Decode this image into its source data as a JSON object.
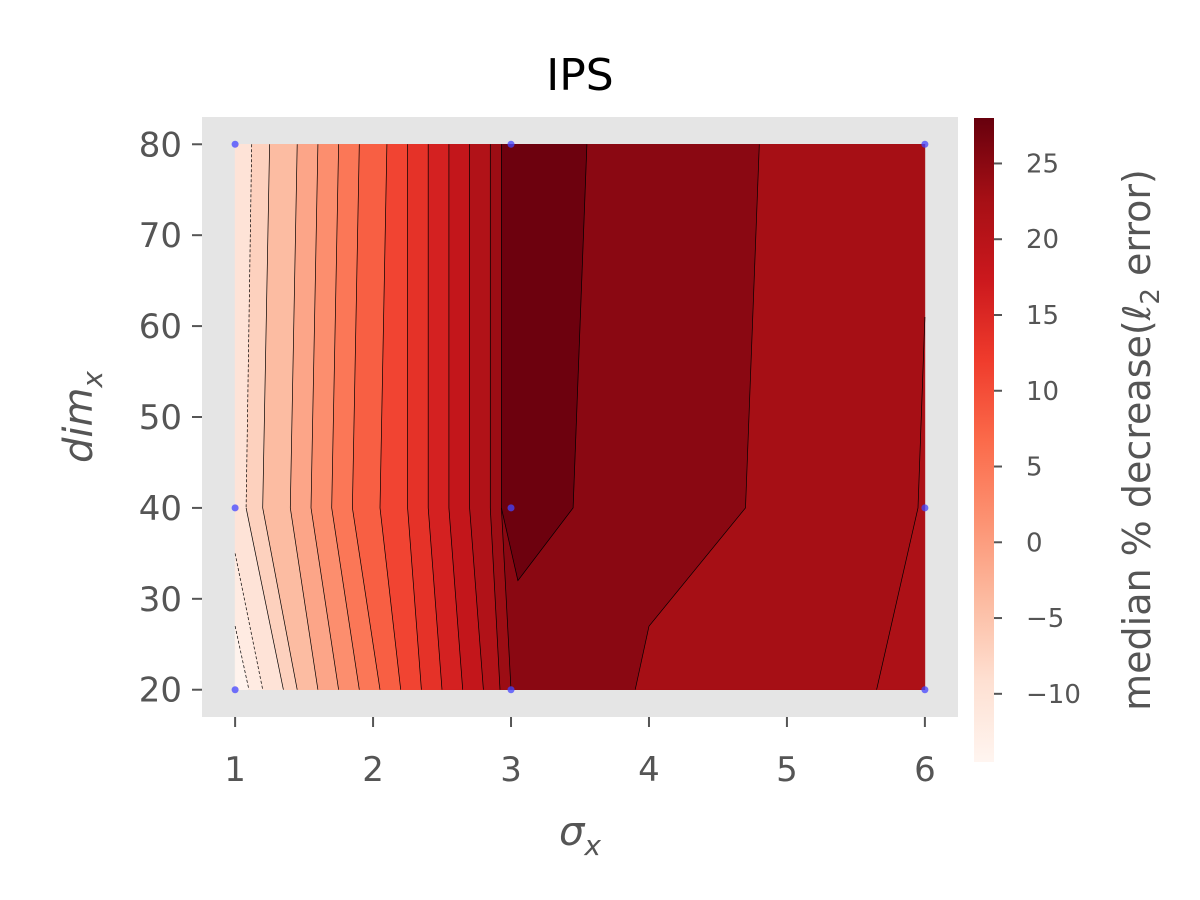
{
  "chart_data": {
    "type": "contour",
    "title": "IPS",
    "xlabel": "σ",
    "xlabel_sub": "x",
    "ylabel": "dim",
    "ylabel_sub": "x",
    "colorbar_label": "median % decrease(ℓ",
    "colorbar_label_sub": "2",
    "colorbar_label_tail": " error)",
    "colormap": "Reds",
    "x_ticks": [
      "1",
      "2",
      "3",
      "4",
      "5",
      "6"
    ],
    "y_ticks": [
      "20",
      "30",
      "40",
      "50",
      "60",
      "70",
      "80"
    ],
    "colorbar_ticks": [
      "−10",
      "−5",
      "0",
      "5",
      "10",
      "15",
      "20",
      "25"
    ],
    "colorbar_tick_values": [
      -10,
      -5,
      0,
      5,
      10,
      15,
      20,
      25
    ],
    "colorbar_range": [
      -14.5,
      28
    ],
    "xlim": [
      0.76,
      6.24
    ],
    "ylim": [
      17,
      83
    ],
    "data_range": {
      "x": [
        1,
        6
      ],
      "y": [
        20,
        80
      ]
    },
    "grid_points": [
      {
        "x": 1,
        "y": 20
      },
      {
        "x": 1,
        "y": 40
      },
      {
        "x": 1,
        "y": 80
      },
      {
        "x": 3,
        "y": 20
      },
      {
        "x": 3,
        "y": 40
      },
      {
        "x": 3,
        "y": 80
      },
      {
        "x": 6,
        "y": 20
      },
      {
        "x": 6,
        "y": 40
      },
      {
        "x": 6,
        "y": 80
      }
    ],
    "contour_bands": [
      {
        "v": -14,
        "pts": [
          [
            1,
            20
          ],
          [
            1.1,
            20
          ],
          [
            1,
            27
          ]
        ]
      },
      {
        "v": -12,
        "pts": [
          [
            1,
            27
          ],
          [
            1.1,
            20
          ],
          [
            1.2,
            20
          ],
          [
            1,
            35
          ]
        ]
      },
      {
        "v": -10,
        "pts": [
          [
            1,
            35
          ],
          [
            1.2,
            20
          ],
          [
            1.35,
            20
          ],
          [
            1.08,
            40
          ],
          [
            1.12,
            80
          ],
          [
            1,
            80
          ]
        ]
      },
      {
        "v": -7,
        "pts": [
          [
            1.12,
            80
          ],
          [
            1.08,
            40
          ],
          [
            1.35,
            20
          ],
          [
            1.45,
            20
          ],
          [
            1.2,
            40
          ],
          [
            1.25,
            80
          ]
        ]
      },
      {
        "v": -4,
        "pts": [
          [
            1.25,
            80
          ],
          [
            1.2,
            40
          ],
          [
            1.45,
            20
          ],
          [
            1.6,
            20
          ],
          [
            1.4,
            40
          ],
          [
            1.45,
            80
          ]
        ]
      },
      {
        "v": -1,
        "pts": [
          [
            1.45,
            80
          ],
          [
            1.4,
            40
          ],
          [
            1.6,
            20
          ],
          [
            1.75,
            20
          ],
          [
            1.55,
            40
          ],
          [
            1.6,
            80
          ]
        ]
      },
      {
        "v": 2,
        "pts": [
          [
            1.6,
            80
          ],
          [
            1.55,
            40
          ],
          [
            1.75,
            20
          ],
          [
            1.9,
            20
          ],
          [
            1.7,
            40
          ],
          [
            1.75,
            80
          ]
        ]
      },
      {
        "v": 5,
        "pts": [
          [
            1.75,
            80
          ],
          [
            1.7,
            40
          ],
          [
            1.9,
            20
          ],
          [
            2.05,
            20
          ],
          [
            1.85,
            40
          ],
          [
            1.9,
            80
          ]
        ]
      },
      {
        "v": 8,
        "pts": [
          [
            1.9,
            80
          ],
          [
            1.85,
            40
          ],
          [
            2.05,
            20
          ],
          [
            2.2,
            20
          ],
          [
            2.05,
            40
          ],
          [
            2.1,
            80
          ]
        ]
      },
      {
        "v": 11,
        "pts": [
          [
            2.1,
            80
          ],
          [
            2.05,
            40
          ],
          [
            2.2,
            20
          ],
          [
            2.35,
            20
          ],
          [
            2.25,
            40
          ],
          [
            2.25,
            80
          ]
        ]
      },
      {
        "v": 13.5,
        "pts": [
          [
            2.25,
            80
          ],
          [
            2.25,
            40
          ],
          [
            2.35,
            20
          ],
          [
            2.5,
            20
          ],
          [
            2.4,
            40
          ],
          [
            2.4,
            80
          ]
        ]
      },
      {
        "v": 16,
        "pts": [
          [
            2.4,
            80
          ],
          [
            2.4,
            40
          ],
          [
            2.5,
            20
          ],
          [
            2.65,
            20
          ],
          [
            2.55,
            40
          ],
          [
            2.55,
            80
          ]
        ]
      },
      {
        "v": 18.5,
        "pts": [
          [
            2.55,
            80
          ],
          [
            2.55,
            40
          ],
          [
            2.65,
            20
          ],
          [
            2.8,
            20
          ],
          [
            2.7,
            40
          ],
          [
            2.7,
            80
          ]
        ]
      },
      {
        "v": 21,
        "pts": [
          [
            2.7,
            80
          ],
          [
            2.7,
            40
          ],
          [
            2.8,
            20
          ],
          [
            2.92,
            20
          ],
          [
            2.85,
            40
          ],
          [
            2.85,
            80
          ]
        ]
      },
      {
        "v": 23.5,
        "pts": [
          [
            2.85,
            80
          ],
          [
            2.85,
            40
          ],
          [
            2.92,
            20
          ],
          [
            3.0,
            20
          ],
          [
            2.93,
            40
          ],
          [
            2.93,
            80
          ]
        ]
      },
      {
        "v": 25,
        "pts": [
          [
            2.93,
            80
          ],
          [
            2.93,
            40
          ],
          [
            3.0,
            20
          ],
          [
            3.9,
            20
          ],
          [
            4.0,
            27
          ],
          [
            4.7,
            40
          ],
          [
            4.8,
            80
          ]
        ]
      },
      {
        "v": 27.5,
        "pts": [
          [
            2.93,
            80
          ],
          [
            2.93,
            40
          ],
          [
            3.05,
            32
          ],
          [
            3.45,
            40
          ],
          [
            3.55,
            80
          ]
        ]
      },
      {
        "v": 22.5,
        "pts": [
          [
            4.8,
            80
          ],
          [
            4.7,
            40
          ],
          [
            4.0,
            27
          ],
          [
            3.9,
            20
          ],
          [
            5.65,
            20
          ],
          [
            5.95,
            40
          ],
          [
            6,
            61
          ],
          [
            6,
            80
          ]
        ]
      },
      {
        "v": 21.5,
        "pts": [
          [
            5.65,
            20
          ],
          [
            6,
            20
          ],
          [
            6,
            61
          ],
          [
            5.95,
            40
          ]
        ]
      }
    ],
    "contour_lines": [
      {
        "dashed": true,
        "pts": [
          [
            1,
            27
          ],
          [
            1.1,
            20
          ]
        ]
      },
      {
        "dashed": true,
        "pts": [
          [
            1,
            35
          ],
          [
            1.2,
            20
          ]
        ]
      },
      {
        "dashed": true,
        "pts": [
          [
            1.12,
            80
          ],
          [
            1.08,
            40
          ]
        ]
      },
      {
        "dashed": false,
        "pts": [
          [
            1.08,
            40
          ],
          [
            1.35,
            20
          ]
        ]
      },
      {
        "dashed": false,
        "pts": [
          [
            1.25,
            80
          ],
          [
            1.2,
            40
          ],
          [
            1.45,
            20
          ]
        ]
      },
      {
        "dashed": false,
        "pts": [
          [
            1.45,
            80
          ],
          [
            1.4,
            40
          ],
          [
            1.6,
            20
          ]
        ]
      },
      {
        "dashed": false,
        "pts": [
          [
            1.6,
            80
          ],
          [
            1.55,
            40
          ],
          [
            1.75,
            20
          ]
        ]
      },
      {
        "dashed": false,
        "pts": [
          [
            1.75,
            80
          ],
          [
            1.7,
            40
          ],
          [
            1.9,
            20
          ]
        ]
      },
      {
        "dashed": false,
        "pts": [
          [
            1.9,
            80
          ],
          [
            1.85,
            40
          ],
          [
            2.05,
            20
          ]
        ]
      },
      {
        "dashed": false,
        "pts": [
          [
            2.1,
            80
          ],
          [
            2.05,
            40
          ],
          [
            2.2,
            20
          ]
        ]
      },
      {
        "dashed": false,
        "pts": [
          [
            2.25,
            80
          ],
          [
            2.25,
            40
          ],
          [
            2.35,
            20
          ]
        ]
      },
      {
        "dashed": false,
        "pts": [
          [
            2.4,
            80
          ],
          [
            2.4,
            40
          ],
          [
            2.5,
            20
          ]
        ]
      },
      {
        "dashed": false,
        "pts": [
          [
            2.55,
            80
          ],
          [
            2.55,
            40
          ],
          [
            2.65,
            20
          ]
        ]
      },
      {
        "dashed": false,
        "pts": [
          [
            2.7,
            80
          ],
          [
            2.7,
            40
          ],
          [
            2.8,
            20
          ]
        ]
      },
      {
        "dashed": false,
        "pts": [
          [
            2.85,
            80
          ],
          [
            2.85,
            40
          ],
          [
            2.92,
            20
          ]
        ]
      },
      {
        "dashed": false,
        "pts": [
          [
            2.93,
            80
          ],
          [
            2.93,
            40
          ],
          [
            3.0,
            20
          ]
        ]
      },
      {
        "dashed": false,
        "pts": [
          [
            2.93,
            40
          ],
          [
            3.05,
            32
          ],
          [
            3.45,
            40
          ],
          [
            3.55,
            80
          ]
        ]
      },
      {
        "dashed": false,
        "pts": [
          [
            4.8,
            80
          ],
          [
            4.7,
            40
          ],
          [
            4.0,
            27
          ],
          [
            3.9,
            20
          ]
        ]
      },
      {
        "dashed": false,
        "pts": [
          [
            6,
            61
          ],
          [
            5.95,
            40
          ],
          [
            5.65,
            20
          ]
        ]
      }
    ]
  }
}
